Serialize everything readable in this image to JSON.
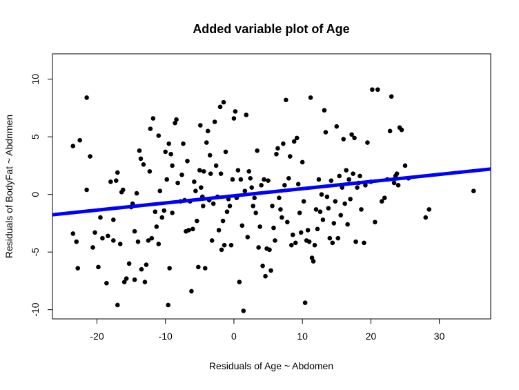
{
  "chart_data": {
    "type": "scatter",
    "title": "Added variable plot of Age",
    "xlabel": "Residuals of Age ~ Abdomen",
    "ylabel": "Residuals of BodyFat ~ Abdnmen",
    "xlim": [
      -26.5,
      37.5
    ],
    "ylim": [
      -10.8,
      12.2
    ],
    "x_ticks": [
      -20,
      -10,
      0,
      10,
      20,
      30
    ],
    "y_ticks": [
      -10,
      -5,
      0,
      5,
      10
    ],
    "grid": false,
    "legend": "none",
    "point_color": "#000000",
    "line_color": "#0000ff",
    "fit_line": {
      "intercept": -0.12,
      "slope": 0.062
    },
    "points": [
      [
        -23.5,
        4.2
      ],
      [
        -22.5,
        4.7
      ],
      [
        -21.5,
        8.4
      ],
      [
        -21.0,
        3.3
      ],
      [
        -21.5,
        0.4
      ],
      [
        -22.8,
        -6.4
      ],
      [
        -23.0,
        -4.1
      ],
      [
        -23.5,
        -3.4
      ],
      [
        -20.6,
        -4.6
      ],
      [
        -20.3,
        -3.3
      ],
      [
        -19.8,
        -6.3
      ],
      [
        -19.5,
        -2.0
      ],
      [
        -19.2,
        -3.8
      ],
      [
        -18.6,
        -7.7
      ],
      [
        -18.4,
        -3.6
      ],
      [
        -18.0,
        1.1
      ],
      [
        -17.6,
        -2.2
      ],
      [
        -17.6,
        -4.0
      ],
      [
        -17.2,
        1.2
      ],
      [
        -17.0,
        1.9
      ],
      [
        -17.0,
        -9.6
      ],
      [
        -16.6,
        -4.3
      ],
      [
        -16.4,
        0.2
      ],
      [
        -16.2,
        0.4
      ],
      [
        -16.0,
        -7.6
      ],
      [
        -15.7,
        -7.3
      ],
      [
        -15.3,
        -6.0
      ],
      [
        -15.0,
        -1.1
      ],
      [
        -14.8,
        -0.8
      ],
      [
        -14.5,
        -3.2
      ],
      [
        -14.5,
        -7.4
      ],
      [
        -14.2,
        0.1
      ],
      [
        -14.0,
        -4.1
      ],
      [
        -13.8,
        3.8
      ],
      [
        -13.6,
        3.1
      ],
      [
        -13.5,
        -6.5
      ],
      [
        -13.2,
        2.6
      ],
      [
        -13.0,
        -7.6
      ],
      [
        -12.8,
        -6.1
      ],
      [
        -12.5,
        -4.0
      ],
      [
        -12.3,
        2.0
      ],
      [
        -12.2,
        5.7
      ],
      [
        -12.0,
        -3.8
      ],
      [
        -11.8,
        6.6
      ],
      [
        -11.5,
        -1.5
      ],
      [
        -11.3,
        -2.8
      ],
      [
        -11.0,
        -4.3
      ],
      [
        -11.0,
        5.1
      ],
      [
        -10.8,
        0.3
      ],
      [
        -10.5,
        -2.0
      ],
      [
        -10.2,
        -1.4
      ],
      [
        -10.0,
        3.7
      ],
      [
        -9.8,
        1.3
      ],
      [
        -9.6,
        -9.6
      ],
      [
        -9.5,
        4.4
      ],
      [
        -9.4,
        -6.4
      ],
      [
        -9.2,
        3.5
      ],
      [
        -9.0,
        -1.6
      ],
      [
        -9.0,
        2.5
      ],
      [
        -8.6,
        6.2
      ],
      [
        -8.4,
        6.5
      ],
      [
        -8.2,
        1.0
      ],
      [
        -7.8,
        -0.6
      ],
      [
        -7.6,
        1.7
      ],
      [
        -7.4,
        4.4
      ],
      [
        -7.2,
        -0.5
      ],
      [
        -7.0,
        -3.2
      ],
      [
        -6.8,
        2.9
      ],
      [
        -6.6,
        -3.1
      ],
      [
        -6.4,
        -0.6
      ],
      [
        -6.2,
        -8.4
      ],
      [
        -6.0,
        -3.0
      ],
      [
        -5.8,
        1.1
      ],
      [
        -5.6,
        0.3
      ],
      [
        -5.4,
        -2.3
      ],
      [
        -5.2,
        -6.3
      ],
      [
        -5.0,
        2.1
      ],
      [
        -4.9,
        6.0
      ],
      [
        -4.8,
        0.6
      ],
      [
        -4.6,
        -0.2
      ],
      [
        -4.5,
        -1.0
      ],
      [
        -4.4,
        2.0
      ],
      [
        -4.2,
        -6.4
      ],
      [
        -4.0,
        4.5
      ],
      [
        -3.8,
        5.5
      ],
      [
        -3.6,
        -0.5
      ],
      [
        -3.5,
        3.4
      ],
      [
        -3.4,
        1.8
      ],
      [
        -3.2,
        -4.0
      ],
      [
        -3.0,
        -0.8
      ],
      [
        -2.8,
        6.3
      ],
      [
        -2.6,
        2.5
      ],
      [
        -2.4,
        -0.2
      ],
      [
        -2.2,
        -3.1
      ],
      [
        -2.0,
        7.6
      ],
      [
        -1.9,
        1.8
      ],
      [
        -1.8,
        -4.8
      ],
      [
        -1.6,
        -2.3
      ],
      [
        -1.5,
        8.0
      ],
      [
        -1.4,
        -4.4
      ],
      [
        -1.2,
        3.7
      ],
      [
        -1.0,
        -1.5
      ],
      [
        -0.8,
        -0.4
      ],
      [
        -0.6,
        -1.0
      ],
      [
        -0.4,
        -4.4
      ],
      [
        -0.2,
        1.3
      ],
      [
        0.0,
        6.6
      ],
      [
        0.2,
        7.2
      ],
      [
        0.4,
        -0.3
      ],
      [
        0.6,
        2.1
      ],
      [
        0.8,
        -7.6
      ],
      [
        1.0,
        1.3
      ],
      [
        1.2,
        -2.7
      ],
      [
        1.4,
        -10.1
      ],
      [
        1.6,
        0.3
      ],
      [
        1.8,
        6.9
      ],
      [
        2.0,
        -3.7
      ],
      [
        2.2,
        2.0
      ],
      [
        2.4,
        1.4
      ],
      [
        2.6,
        0.6
      ],
      [
        2.8,
        -1.0
      ],
      [
        3.0,
        -0.3
      ],
      [
        3.2,
        -1.6
      ],
      [
        3.4,
        3.8
      ],
      [
        3.6,
        -4.6
      ],
      [
        3.8,
        -2.8
      ],
      [
        4.0,
        0.8
      ],
      [
        4.2,
        -6.2
      ],
      [
        4.4,
        1.3
      ],
      [
        4.6,
        -7.1
      ],
      [
        4.8,
        -4.7
      ],
      [
        5.0,
        1.2
      ],
      [
        5.2,
        -4.8
      ],
      [
        5.4,
        -6.6
      ],
      [
        5.6,
        -1.0
      ],
      [
        5.8,
        -2.9
      ],
      [
        6.0,
        -4.0
      ],
      [
        6.2,
        3.5
      ],
      [
        6.4,
        4.0
      ],
      [
        6.6,
        -0.3
      ],
      [
        6.8,
        -1.3
      ],
      [
        7.0,
        -2.0
      ],
      [
        7.2,
        4.4
      ],
      [
        7.4,
        0.8
      ],
      [
        7.6,
        8.2
      ],
      [
        7.8,
        -2.4
      ],
      [
        8.0,
        1.4
      ],
      [
        8.2,
        3.3
      ],
      [
        8.4,
        -4.4
      ],
      [
        8.6,
        -3.5
      ],
      [
        8.8,
        4.6
      ],
      [
        9.0,
        -4.2
      ],
      [
        9.2,
        4.9
      ],
      [
        9.4,
        0.9
      ],
      [
        9.6,
        -1.6
      ],
      [
        9.8,
        -3.3
      ],
      [
        10.0,
        2.8
      ],
      [
        10.2,
        -0.6
      ],
      [
        10.4,
        -9.4
      ],
      [
        10.6,
        -4.0
      ],
      [
        10.8,
        -3.1
      ],
      [
        11.0,
        -4.1
      ],
      [
        11.2,
        8.4
      ],
      [
        11.4,
        -5.5
      ],
      [
        11.6,
        -5.8
      ],
      [
        11.8,
        -4.4
      ],
      [
        12.0,
        -1.3
      ],
      [
        12.2,
        -3.0
      ],
      [
        12.4,
        1.3
      ],
      [
        12.6,
        -1.5
      ],
      [
        12.8,
        0.0
      ],
      [
        13.0,
        -2.2
      ],
      [
        13.2,
        7.3
      ],
      [
        13.4,
        5.4
      ],
      [
        13.6,
        -0.2
      ],
      [
        13.8,
        -1.2
      ],
      [
        14.0,
        -3.8
      ],
      [
        14.2,
        1.2
      ],
      [
        14.4,
        -4.2
      ],
      [
        14.6,
        -2.5
      ],
      [
        14.8,
        -0.6
      ],
      [
        15.0,
        5.9
      ],
      [
        15.2,
        -3.8
      ],
      [
        15.4,
        1.6
      ],
      [
        15.6,
        -1.8
      ],
      [
        15.8,
        0.6
      ],
      [
        16.0,
        4.8
      ],
      [
        16.2,
        -0.8
      ],
      [
        16.4,
        2.1
      ],
      [
        16.6,
        -2.6
      ],
      [
        16.8,
        1.3
      ],
      [
        17.0,
        -0.4
      ],
      [
        17.2,
        5.2
      ],
      [
        17.4,
        1.8
      ],
      [
        17.6,
        4.9
      ],
      [
        17.8,
        -4.1
      ],
      [
        18.0,
        0.6
      ],
      [
        18.2,
        1.0
      ],
      [
        18.4,
        1.6
      ],
      [
        18.6,
        -1.3
      ],
      [
        19.0,
        -4.2
      ],
      [
        19.2,
        0.8
      ],
      [
        19.5,
        4.5
      ],
      [
        20.0,
        1.1
      ],
      [
        20.2,
        9.1
      ],
      [
        20.6,
        -2.4
      ],
      [
        21.0,
        9.1
      ],
      [
        21.6,
        -0.6
      ],
      [
        22.0,
        -0.3
      ],
      [
        22.4,
        1.3
      ],
      [
        22.8,
        5.5
      ],
      [
        23.0,
        8.5
      ],
      [
        23.4,
        1.0
      ],
      [
        23.6,
        1.6
      ],
      [
        23.8,
        1.8
      ],
      [
        24.0,
        0.8
      ],
      [
        24.2,
        5.8
      ],
      [
        24.5,
        5.6
      ],
      [
        25.0,
        2.5
      ],
      [
        25.5,
        1.4
      ],
      [
        28.0,
        -2.0
      ],
      [
        28.5,
        -1.3
      ],
      [
        35.0,
        0.3
      ]
    ]
  }
}
